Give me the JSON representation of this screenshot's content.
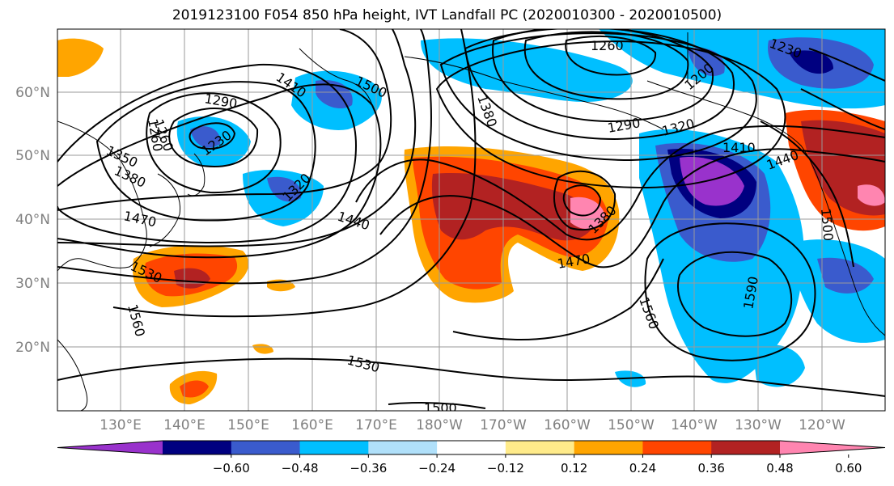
{
  "title": "2019123100 F054 850 hPa height, IVT Landfall PC (2020010300 - 2020010500)",
  "lon_ticks": [
    "130°E",
    "140°E",
    "150°E",
    "160°E",
    "170°E",
    "180°W",
    "170°W",
    "160°W",
    "150°W",
    "140°W",
    "130°W",
    "120°W"
  ],
  "lat_ticks": [
    "60°N",
    "50°N",
    "40°N",
    "30°N",
    "20°N"
  ],
  "contour_labels": [
    "1260",
    "1410",
    "1500",
    "1290",
    "1230",
    "1260",
    "1350",
    "1380",
    "1320",
    "1470",
    "1440",
    "1530",
    "1560",
    "1380",
    "1260",
    "1230",
    "1200",
    "1290",
    "1320",
    "1410",
    "1440",
    "1380",
    "1470",
    "1590",
    "1560",
    "1500",
    "1530",
    "1500"
  ],
  "colorbar": {
    "colors": [
      "#9932CC",
      "#000080",
      "#3A5BCD",
      "#00BFFF",
      "#B0E0FA",
      "#FFFFFF",
      "#FFEB8A",
      "#FFA500",
      "#FF4500",
      "#B22222",
      "#FF85B0"
    ],
    "tick_labels": [
      "−0.60",
      "−0.48",
      "−0.36",
      "−0.24",
      "−0.12",
      "0.12",
      "0.24",
      "0.36",
      "0.48",
      "0.60"
    ]
  }
}
